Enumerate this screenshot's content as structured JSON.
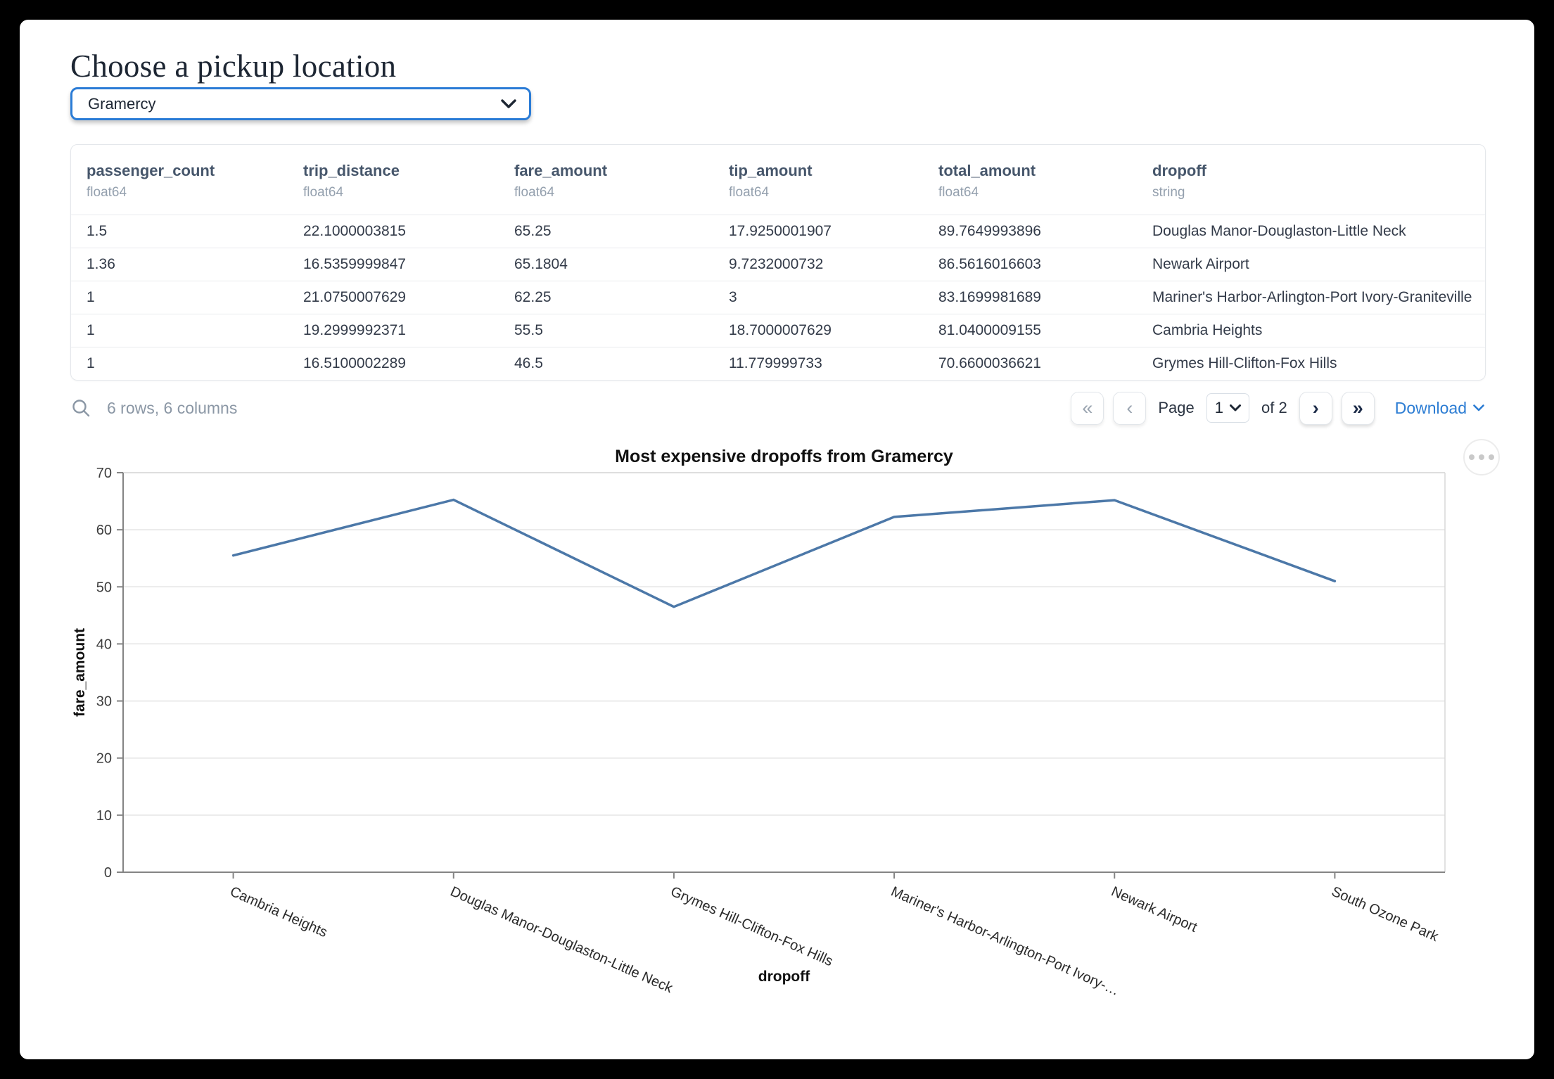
{
  "page": {
    "title": "Choose a pickup location"
  },
  "pickup_select": {
    "value": "Gramercy"
  },
  "table": {
    "columns": [
      {
        "name": "passenger_count",
        "type": "float64"
      },
      {
        "name": "trip_distance",
        "type": "float64"
      },
      {
        "name": "fare_amount",
        "type": "float64"
      },
      {
        "name": "tip_amount",
        "type": "float64"
      },
      {
        "name": "total_amount",
        "type": "float64"
      },
      {
        "name": "dropoff",
        "type": "string"
      }
    ],
    "rows": [
      [
        "1.5",
        "22.1000003815",
        "65.25",
        "17.9250001907",
        "89.7649993896",
        "Douglas Manor-Douglaston-Little Neck"
      ],
      [
        "1.36",
        "16.5359999847",
        "65.1804",
        "9.7232000732",
        "86.5616016603",
        "Newark Airport"
      ],
      [
        "1",
        "21.0750007629",
        "62.25",
        "3",
        "83.1699981689",
        "Mariner's Harbor-Arlington-Port Ivory-Graniteville"
      ],
      [
        "1",
        "19.2999992371",
        "55.5",
        "18.7000007629",
        "81.0400009155",
        "Cambria Heights"
      ],
      [
        "1",
        "16.5100002289",
        "46.5",
        "11.779999733",
        "70.6600036621",
        "Grymes Hill-Clifton-Fox Hills"
      ]
    ]
  },
  "table_footer": {
    "summary": "6 rows, 6 columns",
    "pagination": {
      "first": "«",
      "prev": "‹",
      "page_label": "Page",
      "page_value": "1",
      "of_label": "of 2",
      "next": "›",
      "last": "»"
    },
    "download_label": "Download"
  },
  "chart_data": {
    "type": "line",
    "title": "Most expensive dropoffs from Gramercy",
    "xlabel": "dropoff",
    "ylabel": "fare_amount",
    "categories": [
      "Cambria Heights",
      "Douglas Manor-Douglaston-Little Neck",
      "Grymes Hill-Clifton-Fox Hills",
      "Mariner's Harbor-Arlington-Port Ivory-Graniteville",
      "Newark Airport",
      "South Ozone Park"
    ],
    "xtick_labels": [
      "Cambria Heights",
      "Douglas Manor-Douglaston-Little Neck",
      "Grymes Hill-Clifton-Fox Hills",
      "Mariner's Harbor-Arlington-Port Ivory-…",
      "Newark Airport",
      "South Ozone Park"
    ],
    "values": [
      55.5,
      65.25,
      46.5,
      62.25,
      65.1804,
      51
    ],
    "ylim": [
      0,
      70
    ],
    "yticks": [
      0,
      10,
      20,
      30,
      40,
      50,
      60,
      70
    ],
    "grid": true,
    "legend": "none",
    "line_color": "#4c78a8"
  }
}
